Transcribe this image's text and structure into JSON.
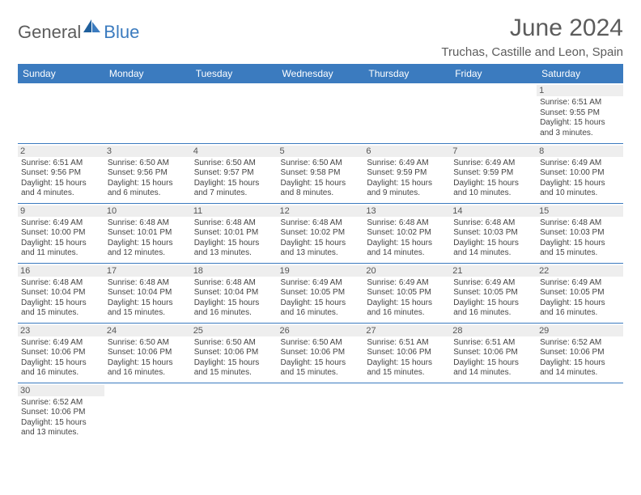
{
  "logo": {
    "part1": "General",
    "part2": "Blue"
  },
  "title": "June 2024",
  "location": "Truchas, Castille and Leon, Spain",
  "colors": {
    "header_bg": "#3b7bbf",
    "header_text": "#ffffff",
    "daynum_bg": "#eeeeee",
    "text": "#444444",
    "title_color": "#5c5c5c",
    "row_border": "#3b7bbf"
  },
  "daysOfWeek": [
    "Sunday",
    "Monday",
    "Tuesday",
    "Wednesday",
    "Thursday",
    "Friday",
    "Saturday"
  ],
  "weeks": [
    [
      null,
      null,
      null,
      null,
      null,
      null,
      {
        "n": "1",
        "sunrise": "Sunrise: 6:51 AM",
        "sunset": "Sunset: 9:55 PM",
        "day1": "Daylight: 15 hours",
        "day2": "and 3 minutes."
      }
    ],
    [
      {
        "n": "2",
        "sunrise": "Sunrise: 6:51 AM",
        "sunset": "Sunset: 9:56 PM",
        "day1": "Daylight: 15 hours",
        "day2": "and 4 minutes."
      },
      {
        "n": "3",
        "sunrise": "Sunrise: 6:50 AM",
        "sunset": "Sunset: 9:56 PM",
        "day1": "Daylight: 15 hours",
        "day2": "and 6 minutes."
      },
      {
        "n": "4",
        "sunrise": "Sunrise: 6:50 AM",
        "sunset": "Sunset: 9:57 PM",
        "day1": "Daylight: 15 hours",
        "day2": "and 7 minutes."
      },
      {
        "n": "5",
        "sunrise": "Sunrise: 6:50 AM",
        "sunset": "Sunset: 9:58 PM",
        "day1": "Daylight: 15 hours",
        "day2": "and 8 minutes."
      },
      {
        "n": "6",
        "sunrise": "Sunrise: 6:49 AM",
        "sunset": "Sunset: 9:59 PM",
        "day1": "Daylight: 15 hours",
        "day2": "and 9 minutes."
      },
      {
        "n": "7",
        "sunrise": "Sunrise: 6:49 AM",
        "sunset": "Sunset: 9:59 PM",
        "day1": "Daylight: 15 hours",
        "day2": "and 10 minutes."
      },
      {
        "n": "8",
        "sunrise": "Sunrise: 6:49 AM",
        "sunset": "Sunset: 10:00 PM",
        "day1": "Daylight: 15 hours",
        "day2": "and 10 minutes."
      }
    ],
    [
      {
        "n": "9",
        "sunrise": "Sunrise: 6:49 AM",
        "sunset": "Sunset: 10:00 PM",
        "day1": "Daylight: 15 hours",
        "day2": "and 11 minutes."
      },
      {
        "n": "10",
        "sunrise": "Sunrise: 6:48 AM",
        "sunset": "Sunset: 10:01 PM",
        "day1": "Daylight: 15 hours",
        "day2": "and 12 minutes."
      },
      {
        "n": "11",
        "sunrise": "Sunrise: 6:48 AM",
        "sunset": "Sunset: 10:01 PM",
        "day1": "Daylight: 15 hours",
        "day2": "and 13 minutes."
      },
      {
        "n": "12",
        "sunrise": "Sunrise: 6:48 AM",
        "sunset": "Sunset: 10:02 PM",
        "day1": "Daylight: 15 hours",
        "day2": "and 13 minutes."
      },
      {
        "n": "13",
        "sunrise": "Sunrise: 6:48 AM",
        "sunset": "Sunset: 10:02 PM",
        "day1": "Daylight: 15 hours",
        "day2": "and 14 minutes."
      },
      {
        "n": "14",
        "sunrise": "Sunrise: 6:48 AM",
        "sunset": "Sunset: 10:03 PM",
        "day1": "Daylight: 15 hours",
        "day2": "and 14 minutes."
      },
      {
        "n": "15",
        "sunrise": "Sunrise: 6:48 AM",
        "sunset": "Sunset: 10:03 PM",
        "day1": "Daylight: 15 hours",
        "day2": "and 15 minutes."
      }
    ],
    [
      {
        "n": "16",
        "sunrise": "Sunrise: 6:48 AM",
        "sunset": "Sunset: 10:04 PM",
        "day1": "Daylight: 15 hours",
        "day2": "and 15 minutes."
      },
      {
        "n": "17",
        "sunrise": "Sunrise: 6:48 AM",
        "sunset": "Sunset: 10:04 PM",
        "day1": "Daylight: 15 hours",
        "day2": "and 15 minutes."
      },
      {
        "n": "18",
        "sunrise": "Sunrise: 6:48 AM",
        "sunset": "Sunset: 10:04 PM",
        "day1": "Daylight: 15 hours",
        "day2": "and 16 minutes."
      },
      {
        "n": "19",
        "sunrise": "Sunrise: 6:49 AM",
        "sunset": "Sunset: 10:05 PM",
        "day1": "Daylight: 15 hours",
        "day2": "and 16 minutes."
      },
      {
        "n": "20",
        "sunrise": "Sunrise: 6:49 AM",
        "sunset": "Sunset: 10:05 PM",
        "day1": "Daylight: 15 hours",
        "day2": "and 16 minutes."
      },
      {
        "n": "21",
        "sunrise": "Sunrise: 6:49 AM",
        "sunset": "Sunset: 10:05 PM",
        "day1": "Daylight: 15 hours",
        "day2": "and 16 minutes."
      },
      {
        "n": "22",
        "sunrise": "Sunrise: 6:49 AM",
        "sunset": "Sunset: 10:05 PM",
        "day1": "Daylight: 15 hours",
        "day2": "and 16 minutes."
      }
    ],
    [
      {
        "n": "23",
        "sunrise": "Sunrise: 6:49 AM",
        "sunset": "Sunset: 10:06 PM",
        "day1": "Daylight: 15 hours",
        "day2": "and 16 minutes."
      },
      {
        "n": "24",
        "sunrise": "Sunrise: 6:50 AM",
        "sunset": "Sunset: 10:06 PM",
        "day1": "Daylight: 15 hours",
        "day2": "and 16 minutes."
      },
      {
        "n": "25",
        "sunrise": "Sunrise: 6:50 AM",
        "sunset": "Sunset: 10:06 PM",
        "day1": "Daylight: 15 hours",
        "day2": "and 15 minutes."
      },
      {
        "n": "26",
        "sunrise": "Sunrise: 6:50 AM",
        "sunset": "Sunset: 10:06 PM",
        "day1": "Daylight: 15 hours",
        "day2": "and 15 minutes."
      },
      {
        "n": "27",
        "sunrise": "Sunrise: 6:51 AM",
        "sunset": "Sunset: 10:06 PM",
        "day1": "Daylight: 15 hours",
        "day2": "and 15 minutes."
      },
      {
        "n": "28",
        "sunrise": "Sunrise: 6:51 AM",
        "sunset": "Sunset: 10:06 PM",
        "day1": "Daylight: 15 hours",
        "day2": "and 14 minutes."
      },
      {
        "n": "29",
        "sunrise": "Sunrise: 6:52 AM",
        "sunset": "Sunset: 10:06 PM",
        "day1": "Daylight: 15 hours",
        "day2": "and 14 minutes."
      }
    ],
    [
      {
        "n": "30",
        "sunrise": "Sunrise: 6:52 AM",
        "sunset": "Sunset: 10:06 PM",
        "day1": "Daylight: 15 hours",
        "day2": "and 13 minutes."
      },
      null,
      null,
      null,
      null,
      null,
      null
    ]
  ]
}
